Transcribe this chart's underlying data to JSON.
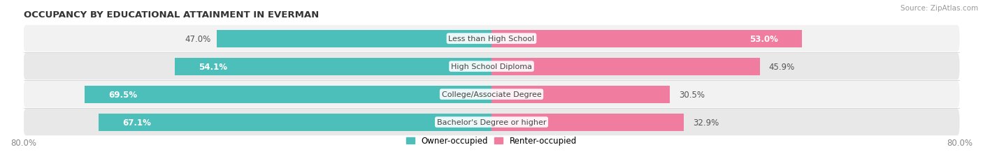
{
  "title": "OCCUPANCY BY EDUCATIONAL ATTAINMENT IN EVERMAN",
  "source": "Source: ZipAtlas.com",
  "categories": [
    "Less than High School",
    "High School Diploma",
    "College/Associate Degree",
    "Bachelor's Degree or higher"
  ],
  "owner_pct": [
    47.0,
    54.1,
    69.5,
    67.1
  ],
  "renter_pct": [
    53.0,
    45.9,
    30.5,
    32.9
  ],
  "owner_color": "#4CBFBA",
  "renter_color": "#F07CA0",
  "xlim_left": -80.0,
  "xlim_right": 80.0,
  "title_fontsize": 9.5,
  "source_fontsize": 7.5,
  "label_fontsize": 8.5,
  "tick_fontsize": 8.5,
  "legend_fontsize": 8.5,
  "bar_height": 0.62,
  "background_color": "#FFFFFF",
  "row_bg_even": "#F2F2F2",
  "row_bg_odd": "#E8E8E8"
}
